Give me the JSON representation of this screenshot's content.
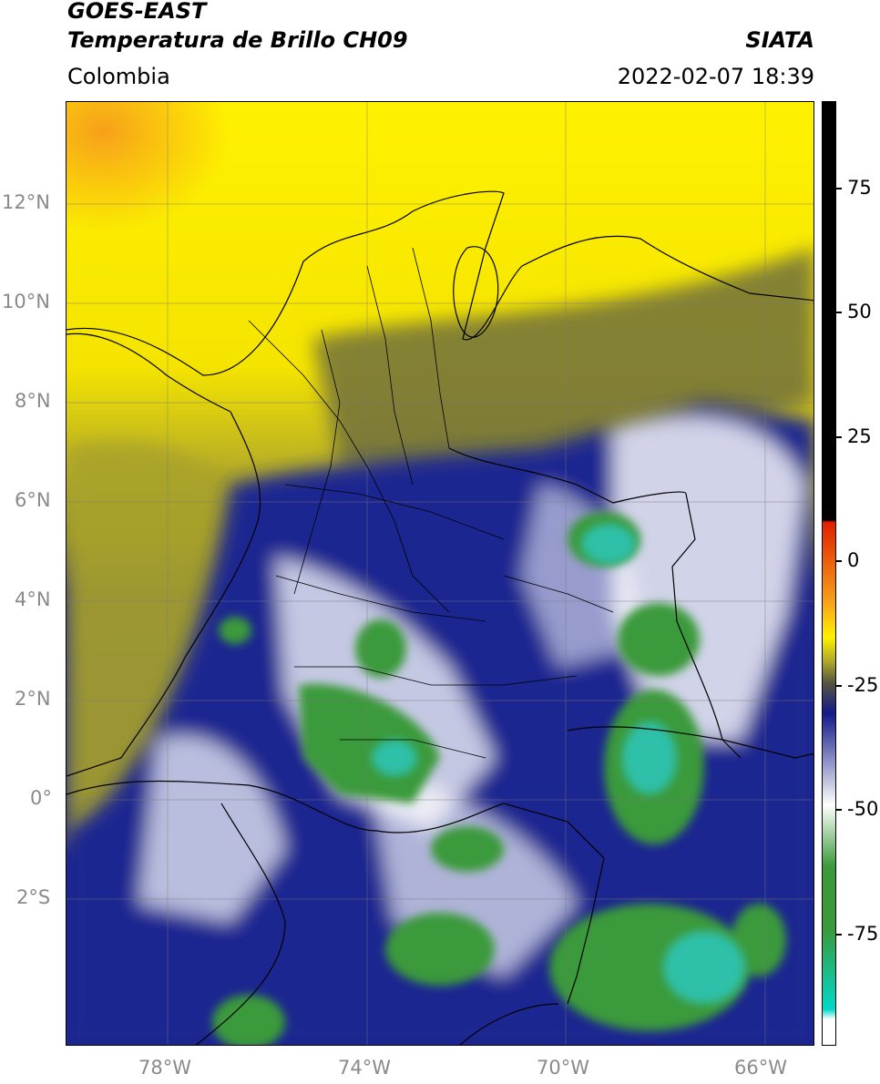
{
  "header": {
    "satellite": "GOES-EAST",
    "product": "Temperatura de Brillo CH09",
    "brand": "SIATA",
    "region": "Colombia",
    "datetime": "2022-02-07 18:39"
  },
  "map": {
    "lat_ticks": [
      "12°N",
      "10°N",
      "8°N",
      "6°N",
      "4°N",
      "2°N",
      "0°",
      "2°S"
    ],
    "lon_ticks": [
      "78°W",
      "74°W",
      "70°W",
      "66°W"
    ],
    "extent": {
      "lon_min": -80,
      "lon_max": -65,
      "lat_min": -5,
      "lat_max": 14
    }
  },
  "colorbar": {
    "ticks": [
      "75",
      "50",
      "25",
      "0",
      "-25",
      "-50",
      "-75"
    ],
    "range": [
      -95,
      90
    ],
    "colors": {
      "hot": "#000000",
      "warm_red": "#e02000",
      "orange": "#f7a01a",
      "yellow": "#fff200",
      "olive": "#aaa42a",
      "dark_gray": "#55553f",
      "navy": "#121a8a",
      "white": "#ffffff",
      "green": "#3a9a3a",
      "cyan": "#00d8c8"
    }
  }
}
